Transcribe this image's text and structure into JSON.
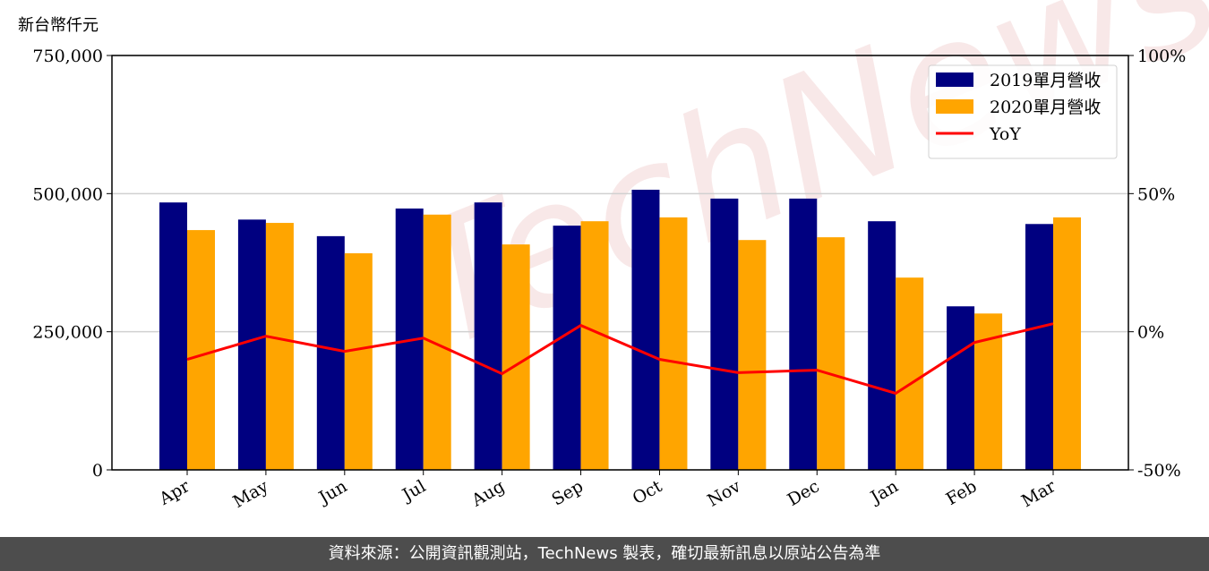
{
  "chart_data": {
    "type": "bar_line",
    "unit_label": "新台幣仟元",
    "watermark": "TechNews",
    "footer": "資料來源：公開資訊觀測站，TechNews 製表，確切最新訊息以原站公告為準",
    "categories": [
      "Apr",
      "May",
      "Jun",
      "Jul",
      "Aug",
      "Sep",
      "Oct",
      "Nov",
      "Dec",
      "Jan",
      "Feb",
      "Mar"
    ],
    "series": [
      {
        "name": "2019單月營收",
        "color": "#000080",
        "values": [
          484000,
          453000,
          423000,
          473000,
          484000,
          442000,
          507000,
          491000,
          491000,
          450000,
          296000,
          445000
        ]
      },
      {
        "name": "2020單月營收",
        "color": "#ffa500",
        "values": [
          434000,
          447000,
          392000,
          462000,
          408000,
          450000,
          457000,
          416000,
          421000,
          348000,
          283000,
          457000
        ]
      },
      {
        "name": "YoY",
        "color": "#ff0000",
        "axis": "y2",
        "values": [
          -10.0,
          -1.6,
          -7.1,
          -2.3,
          -15.2,
          2.3,
          -10.0,
          -14.8,
          -13.9,
          -22.3,
          -3.9,
          2.9
        ]
      }
    ],
    "ylim": [
      0,
      750000
    ],
    "yticks": [
      0,
      {
        "value": 250000,
        "label": "250,000"
      },
      {
        "value": 500000,
        "label": "500,000"
      },
      {
        "value": 750000,
        "label": "750,000"
      }
    ],
    "y2lim": [
      -50,
      100
    ],
    "y2ticks": [
      {
        "value": -50,
        "label": "-50%"
      },
      {
        "value": 0,
        "label": "0%"
      },
      {
        "value": 50,
        "label": "50%"
      },
      {
        "value": 100,
        "label": "100%"
      }
    ],
    "grid": true,
    "legend": "upper right"
  }
}
